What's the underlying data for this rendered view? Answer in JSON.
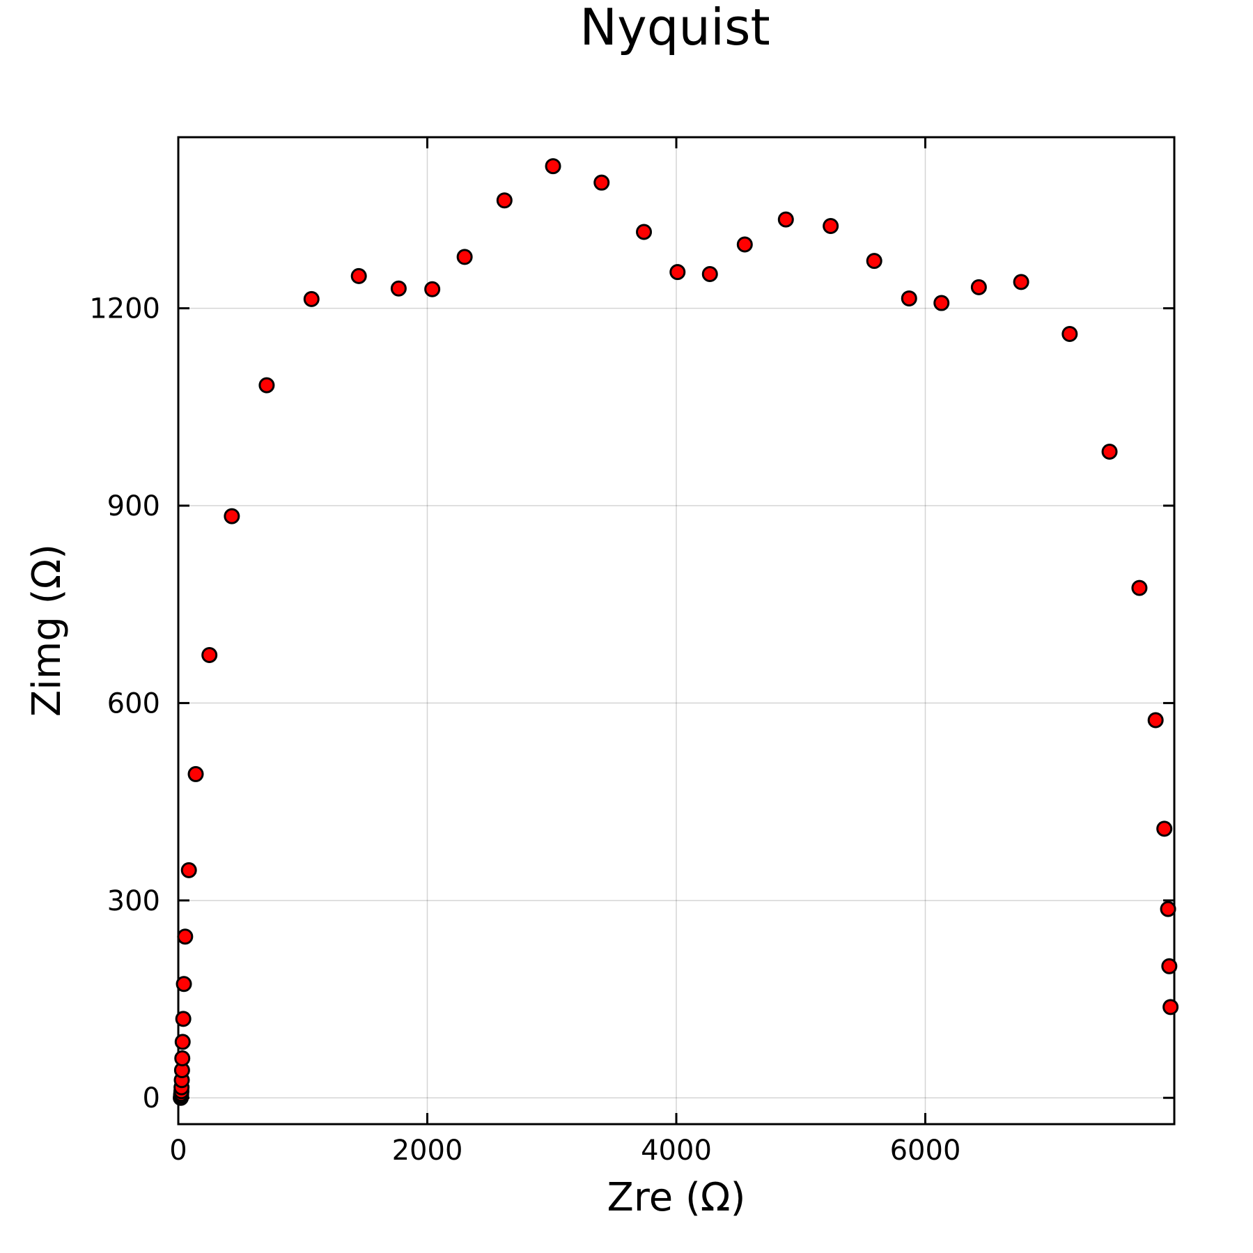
{
  "chart_data": {
    "type": "scatter",
    "title": "Nyquist",
    "xlabel": "Zre (Ω)",
    "ylabel": "Zimg (Ω)",
    "xlim": [
      0,
      8000
    ],
    "ylim": [
      -40,
      1460
    ],
    "xticks": [
      0,
      2000,
      4000,
      6000
    ],
    "yticks": [
      0,
      300,
      600,
      900,
      1200
    ],
    "grid": true,
    "legend": "none",
    "marker_color": "#ff0000",
    "marker_edge_color": "#000000",
    "series": [
      {
        "points": [
          [
            20,
            0
          ],
          [
            22,
            3
          ],
          [
            23,
            6
          ],
          [
            25,
            10
          ],
          [
            26,
            16
          ],
          [
            28,
            27
          ],
          [
            30,
            42
          ],
          [
            32,
            60
          ],
          [
            35,
            85
          ],
          [
            40,
            120
          ],
          [
            45,
            173
          ],
          [
            55,
            245
          ],
          [
            85,
            346
          ],
          [
            140,
            492
          ],
          [
            250,
            673
          ],
          [
            430,
            884
          ],
          [
            710,
            1083
          ],
          [
            1070,
            1214
          ],
          [
            1450,
            1249
          ],
          [
            1770,
            1230
          ],
          [
            2040,
            1229
          ],
          [
            2300,
            1278
          ],
          [
            2620,
            1364
          ],
          [
            3010,
            1416
          ],
          [
            3400,
            1391
          ],
          [
            3740,
            1316
          ],
          [
            4010,
            1255
          ],
          [
            4270,
            1252
          ],
          [
            4550,
            1297
          ],
          [
            4880,
            1335
          ],
          [
            5240,
            1325
          ],
          [
            5590,
            1272
          ],
          [
            5870,
            1215
          ],
          [
            6130,
            1208
          ],
          [
            6430,
            1232
          ],
          [
            6770,
            1240
          ],
          [
            7160,
            1161
          ],
          [
            7480,
            982
          ],
          [
            7720,
            775
          ],
          [
            7850,
            574
          ],
          [
            7920,
            409
          ],
          [
            7950,
            287
          ],
          [
            7960,
            200
          ],
          [
            7970,
            138
          ]
        ]
      }
    ]
  }
}
